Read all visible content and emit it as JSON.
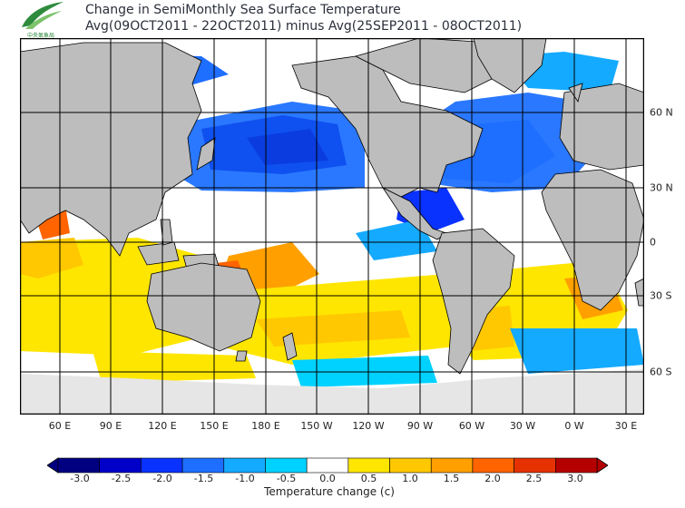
{
  "title": {
    "line1": "Change in SemiMonthly Sea Surface Temperature",
    "line2": "Avg(09OCT2011 - 22OCT2011) minus Avg(25SEP2011 - 08OCT2011)"
  },
  "logo": {
    "icon": "leaf-swoosh-logo",
    "text": "中央氣象局"
  },
  "map": {
    "lat_ticks": [
      "60 N",
      "30 N",
      "0",
      "30 S",
      "60 S"
    ],
    "lon_ticks": [
      "60 E",
      "90 E",
      "120 E",
      "150 E",
      "180 E",
      "150 W",
      "120 W",
      "90 W",
      "60 W",
      "30 W",
      "0 W",
      "30 E"
    ],
    "colors": {
      "land": "#bdbdbd",
      "ice": "#e6e6e6",
      "ocean_neutral": "#ffffff",
      "coastline": "#000000"
    }
  },
  "colorbar": {
    "ticks": [
      "-3.0",
      "-2.5",
      "-2.0",
      "-1.5",
      "-1.0",
      "-0.5",
      "0.0",
      "0.5",
      "1.0",
      "1.5",
      "2.0",
      "2.5",
      "3.0"
    ],
    "colors": [
      "#000080",
      "#0000c8",
      "#0a32ff",
      "#1e6eff",
      "#14aaff",
      "#00d2ff",
      "#ffffff",
      "#ffe600",
      "#ffc800",
      "#ffa000",
      "#ff6400",
      "#e63200",
      "#b40000"
    ],
    "label": "Temperature change (c)"
  }
}
